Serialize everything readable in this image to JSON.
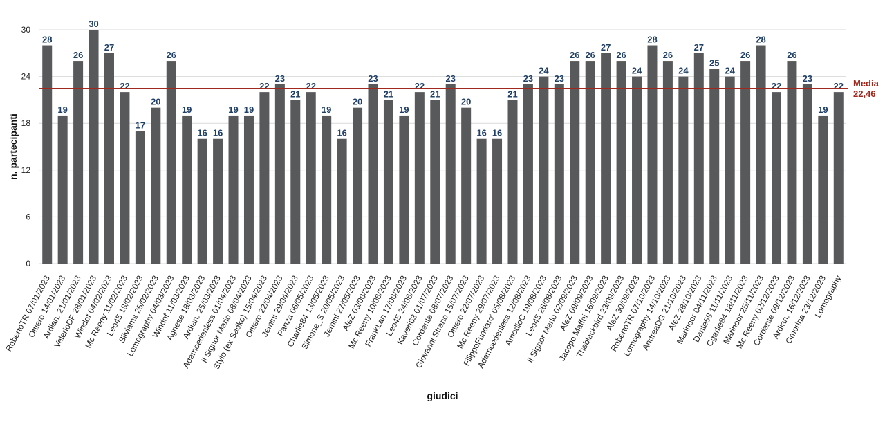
{
  "chart_data": {
    "type": "bar",
    "xlabel": "giudici",
    "ylabel": "n. partecipanti",
    "ylim": [
      0,
      30
    ],
    "yticks": [
      0,
      6,
      12,
      18,
      24,
      30
    ],
    "grid": true,
    "categories": [
      "RobertoTR 07/01/2023",
      "Ottiero 14/01/2023",
      "Ardian. 21/01/2023",
      "ValerioDF 28/01/2023",
      "Windof 04/02/2023",
      "Mc Reeny 11/02/2023",
      "Leo45 18/02/2023",
      "Silviams 25/02/2023",
      "Lomography 04/03/2023",
      "Windof 11/03/2023",
      "Agnese 18/03/2023",
      "Ardian. 25/03/2023",
      "Adamoedenless 01/04/2023",
      "Il Signor Mario 08/04/2023",
      "Stylo (ex Sadko) 15/04/2023",
      "Ottiero 22/04/2023",
      "Jemini 29/04/2023",
      "Panza 06/05/2023",
      "Charlie84 13/05/2023",
      "Simone_S 20/05/2023",
      "Jemini 27/05/2023",
      "AleZ 03/06/2023",
      "Mc Reeny 10/06/2023",
      "FrankLan 17/06/2023",
      "Leo45 24/06/2023",
      "Kaveri63 01/07/2023",
      "Cordante 08/07/2023",
      "Giovanni Strano 15/07/2023",
      "Ottiero 22/07/2023",
      "Mc Reeny 29/07/2023",
      "FilippoFundaro' 05/08/2023",
      "Adamoedenless 12/08/2023",
      "AmodioC 19/08/2023",
      "Leo45 26/08/2023",
      "Il Signor Mario 02/09/2023",
      "AleZ 09/09/2023",
      "Jacopo Maffei 16/09/2023",
      "Theblackbird 23/09/2023",
      "AleZ 30/09/2023",
      "RobertoTR 07/10/2023",
      "Lomography 14/10/2023",
      "AndreaDG 21/10/2023",
      "AleZ 28/10/2023",
      "Marinoor 04/11/2023",
      "Dante58 11/11/2023",
      "Cgarlie84 18/11/2023",
      "Marinoor 25/11/2023",
      "Mc Reeny 02/12/2023",
      "Cordante 09/12/2023",
      "Ardian. 16/12/2023",
      "Gmorina 23/12/2023",
      "Lomography"
    ],
    "values": [
      28,
      19,
      26,
      30,
      27,
      22,
      17,
      20,
      26,
      19,
      16,
      16,
      19,
      19,
      22,
      23,
      21,
      22,
      19,
      16,
      20,
      23,
      21,
      19,
      22,
      21,
      23,
      20,
      16,
      16,
      21,
      23,
      24,
      23,
      26,
      26,
      27,
      26,
      24,
      28,
      26,
      24,
      27,
      25,
      24,
      26,
      28,
      22,
      26,
      23,
      19,
      22
    ],
    "reference_line": {
      "value": 22.46,
      "label": "Media",
      "value_label": "22,46"
    },
    "colors": {
      "bar": "#58595b",
      "value_label": "#1f3f66",
      "reference": "#a0281c",
      "grid": "#d9d9d9"
    }
  }
}
